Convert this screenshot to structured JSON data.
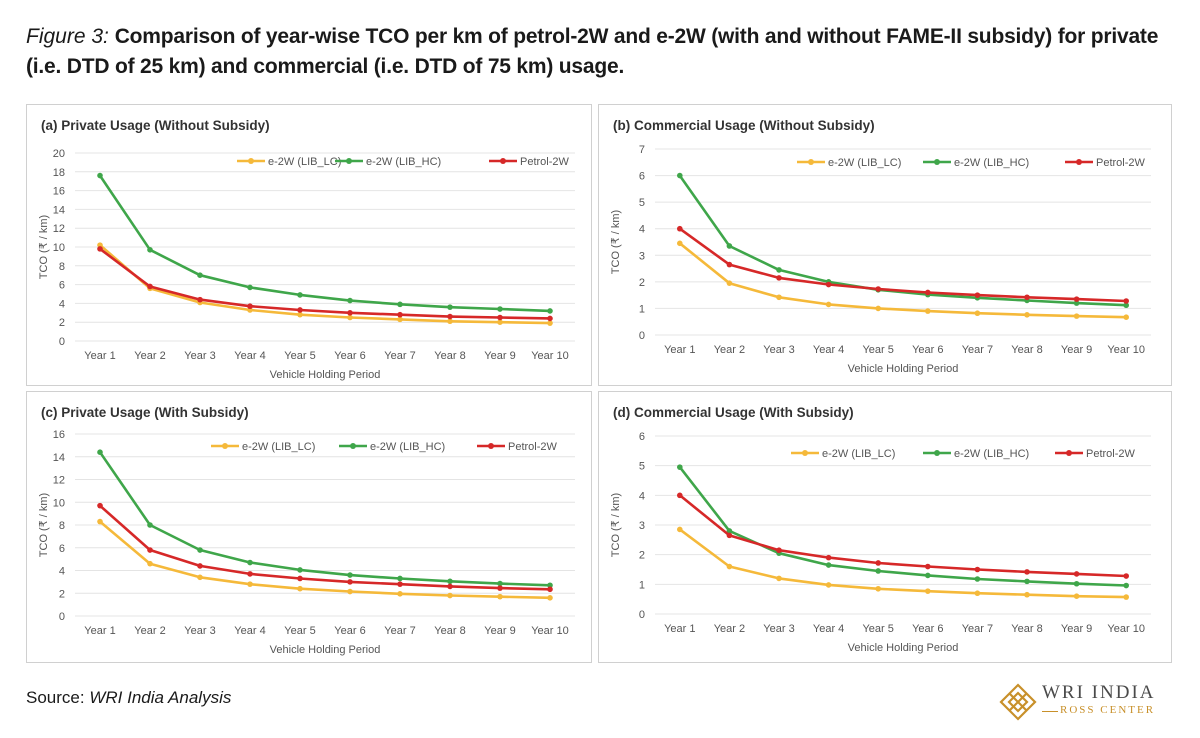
{
  "figure": {
    "lead": "Figure 3:",
    "title": "Comparison of year-wise TCO per km of petrol-2W and e-2W (with and without FAME-II subsidy) for private (i.e. DTD of 25 km) and commercial (i.e. DTD of 75 km) usage."
  },
  "source": {
    "label": "Source:",
    "text": "WRI India Analysis"
  },
  "logo": {
    "line1": "WRI INDIA",
    "line2": "ROSS CENTER"
  },
  "colors": {
    "lc": "#f5b93a",
    "hc": "#3fa64a",
    "petrol": "#d62828",
    "grid": "#e4e4e4"
  },
  "chart_data": [
    {
      "type": "line",
      "title": "(a) Private Usage (Without Subsidy)",
      "xlabel": "Vehicle Holding Period",
      "ylabel": "TCO (₹ / km)",
      "ylim": [
        0,
        20
      ],
      "yticks": [
        0,
        2,
        4,
        6,
        8,
        10,
        12,
        14,
        16,
        18,
        20
      ],
      "categories": [
        "Year 1",
        "Year 2",
        "Year 3",
        "Year 4",
        "Year 5",
        "Year 6",
        "Year 7",
        "Year 8",
        "Year 9",
        "Year 10"
      ],
      "legend": "top",
      "series": [
        {
          "name": "e-2W (LIB_LC)",
          "color": "#f5b93a",
          "values": [
            10.2,
            5.6,
            4.1,
            3.3,
            2.8,
            2.5,
            2.3,
            2.1,
            2.0,
            1.9
          ]
        },
        {
          "name": "e-2W (LIB_HC)",
          "color": "#3fa64a",
          "values": [
            17.6,
            9.7,
            7.0,
            5.7,
            4.9,
            4.3,
            3.9,
            3.6,
            3.4,
            3.2
          ]
        },
        {
          "name": "Petrol-2W",
          "color": "#d62828",
          "values": [
            9.8,
            5.8,
            4.4,
            3.7,
            3.3,
            3.0,
            2.8,
            2.6,
            2.5,
            2.4
          ]
        }
      ]
    },
    {
      "type": "line",
      "title": "(b) Commercial Usage (Without Subsidy)",
      "xlabel": "Vehicle Holding Period",
      "ylabel": "TCO (₹ / km)",
      "ylim": [
        0,
        7
      ],
      "yticks": [
        0,
        1,
        2,
        3,
        4,
        5,
        6,
        7
      ],
      "categories": [
        "Year 1",
        "Year 2",
        "Year 3",
        "Year 4",
        "Year 5",
        "Year 6",
        "Year 7",
        "Year 8",
        "Year 9",
        "Year 10"
      ],
      "legend": "top",
      "series": [
        {
          "name": "e-2W (LIB_LC)",
          "color": "#f5b93a",
          "values": [
            3.45,
            1.95,
            1.42,
            1.15,
            1.0,
            0.9,
            0.82,
            0.76,
            0.71,
            0.67
          ]
        },
        {
          "name": "e-2W (LIB_HC)",
          "color": "#3fa64a",
          "values": [
            6.0,
            3.35,
            2.45,
            2.0,
            1.7,
            1.52,
            1.4,
            1.3,
            1.2,
            1.12
          ]
        },
        {
          "name": "Petrol-2W",
          "color": "#d62828",
          "values": [
            4.0,
            2.65,
            2.15,
            1.9,
            1.73,
            1.6,
            1.5,
            1.42,
            1.35,
            1.28
          ]
        }
      ]
    },
    {
      "type": "line",
      "title": "(c) Private Usage (With Subsidy)",
      "xlabel": "Vehicle Holding Period",
      "ylabel": "TCO (₹ / km)",
      "ylim": [
        0,
        16
      ],
      "yticks": [
        0,
        2,
        4,
        6,
        8,
        10,
        12,
        14,
        16
      ],
      "categories": [
        "Year 1",
        "Year 2",
        "Year 3",
        "Year 4",
        "Year 5",
        "Year 6",
        "Year 7",
        "Year 8",
        "Year 9",
        "Year 10"
      ],
      "legend": "top",
      "series": [
        {
          "name": "e-2W (LIB_LC)",
          "color": "#f5b93a",
          "values": [
            8.3,
            4.6,
            3.4,
            2.8,
            2.4,
            2.15,
            1.95,
            1.8,
            1.7,
            1.6
          ]
        },
        {
          "name": "e-2W (LIB_HC)",
          "color": "#3fa64a",
          "values": [
            14.4,
            8.0,
            5.8,
            4.7,
            4.05,
            3.6,
            3.3,
            3.05,
            2.85,
            2.7
          ]
        },
        {
          "name": "Petrol-2W",
          "color": "#d62828",
          "values": [
            9.7,
            5.8,
            4.4,
            3.7,
            3.3,
            3.0,
            2.8,
            2.6,
            2.45,
            2.35
          ]
        }
      ]
    },
    {
      "type": "line",
      "title": "(d) Commercial Usage (With Subsidy)",
      "xlabel": "Vehicle Holding Period",
      "ylabel": "TCO (₹ / km)",
      "ylim": [
        0,
        6
      ],
      "yticks": [
        0,
        1,
        2,
        3,
        4,
        5,
        6
      ],
      "categories": [
        "Year 1",
        "Year 2",
        "Year 3",
        "Year 4",
        "Year 5",
        "Year 6",
        "Year 7",
        "Year 8",
        "Year 9",
        "Year 10"
      ],
      "legend": "top",
      "series": [
        {
          "name": "e-2W (LIB_LC)",
          "color": "#f5b93a",
          "values": [
            2.85,
            1.6,
            1.2,
            0.98,
            0.85,
            0.77,
            0.7,
            0.65,
            0.6,
            0.57
          ]
        },
        {
          "name": "e-2W (LIB_HC)",
          "color": "#3fa64a",
          "values": [
            4.95,
            2.8,
            2.05,
            1.65,
            1.45,
            1.3,
            1.18,
            1.1,
            1.02,
            0.96
          ]
        },
        {
          "name": "Petrol-2W",
          "color": "#d62828",
          "values": [
            4.0,
            2.65,
            2.15,
            1.9,
            1.72,
            1.6,
            1.5,
            1.42,
            1.35,
            1.28
          ]
        }
      ]
    }
  ]
}
